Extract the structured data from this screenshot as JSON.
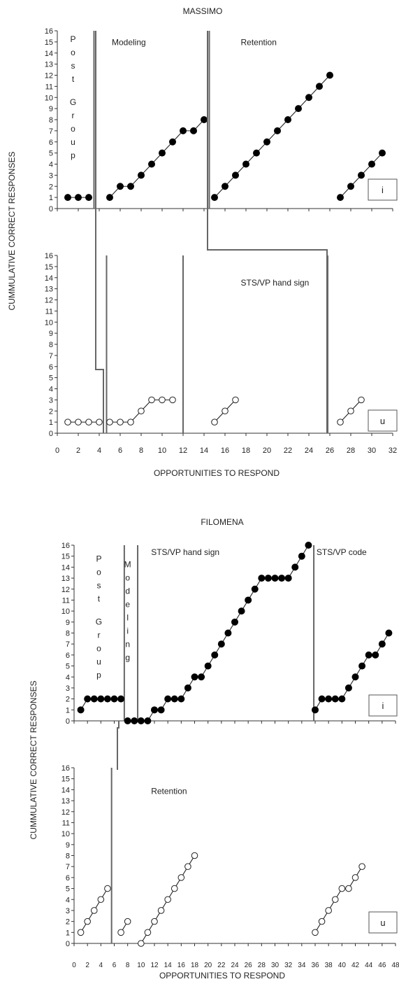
{
  "chart_data": [
    {
      "type": "line",
      "title": "MASSIMO",
      "ylabel": "CUMMULATIVE CORRECT RESPONSES",
      "xlabel": "OPPORTUNITIES TO RESPOND",
      "xlim": [
        0,
        32
      ],
      "ylim": [
        0,
        16
      ],
      "x_ticks": [
        0,
        2,
        4,
        6,
        8,
        10,
        12,
        14,
        16,
        18,
        20,
        22,
        24,
        26,
        28,
        30,
        32
      ],
      "y_ticks": [
        0,
        1,
        2,
        3,
        4,
        5,
        6,
        7,
        8,
        9,
        10,
        11,
        12,
        13,
        14,
        15,
        16
      ],
      "panels": [
        {
          "box_label": "i",
          "phase_labels": [
            {
              "text": "Post Group",
              "vertical": true,
              "x": 1.5,
              "y": 15
            },
            {
              "text": "Modeling",
              "vertical": false,
              "x": 5.2,
              "y": 14.7
            },
            {
              "text": "Retention",
              "vertical": false,
              "x": 17.5,
              "y": 14.7
            }
          ],
          "phase_lines": [
            3.5,
            14.5
          ],
          "series": [
            {
              "marker": "filled",
              "points": [
                [
                  1,
                  1
                ],
                [
                  2,
                  1
                ],
                [
                  3,
                  1
                ]
              ]
            },
            {
              "marker": "filled",
              "points": [
                [
                  5,
                  1
                ],
                [
                  6,
                  2
                ],
                [
                  7,
                  2
                ],
                [
                  8,
                  3
                ],
                [
                  9,
                  4
                ],
                [
                  10,
                  5
                ],
                [
                  11,
                  6
                ],
                [
                  12,
                  7
                ],
                [
                  13,
                  7
                ],
                [
                  14,
                  8
                ]
              ]
            },
            {
              "marker": "filled",
              "points": [
                [
                  15,
                  1
                ],
                [
                  16,
                  2
                ],
                [
                  17,
                  3
                ],
                [
                  18,
                  4
                ],
                [
                  19,
                  5
                ],
                [
                  20,
                  6
                ],
                [
                  21,
                  7
                ],
                [
                  22,
                  8
                ],
                [
                  23,
                  9
                ],
                [
                  24,
                  10
                ],
                [
                  25,
                  11
                ],
                [
                  26,
                  12
                ]
              ]
            },
            {
              "marker": "filled",
              "points": [
                [
                  27,
                  1
                ],
                [
                  28,
                  2
                ],
                [
                  29,
                  3
                ],
                [
                  30,
                  4
                ],
                [
                  31,
                  5
                ]
              ]
            }
          ]
        },
        {
          "box_label": "u",
          "phase_labels": [
            {
              "text": "STS/VP hand sign",
              "vertical": false,
              "x": 17.5,
              "y": 13.3
            }
          ],
          "phase_lines": [
            4.7,
            12,
            25.8
          ],
          "series": [
            {
              "marker": "open",
              "points": [
                [
                  1,
                  1
                ],
                [
                  2,
                  1
                ],
                [
                  3,
                  1
                ],
                [
                  4,
                  1
                ]
              ]
            },
            {
              "marker": "open",
              "points": [
                [
                  5,
                  1
                ],
                [
                  6,
                  1
                ],
                [
                  7,
                  1
                ],
                [
                  8,
                  2
                ],
                [
                  9,
                  3
                ],
                [
                  10,
                  3
                ],
                [
                  11,
                  3
                ]
              ]
            },
            {
              "marker": "open",
              "points": [
                [
                  15,
                  1
                ],
                [
                  16,
                  2
                ],
                [
                  17,
                  3
                ]
              ]
            },
            {
              "marker": "open",
              "points": [
                [
                  27,
                  1
                ],
                [
                  28,
                  2
                ],
                [
                  29,
                  3
                ]
              ]
            }
          ]
        }
      ]
    },
    {
      "type": "line",
      "title": "FILOMENA",
      "ylabel": "CUMMULATIVE CORRECT RESPONSES",
      "xlabel": "OPPORTUNITIES TO RESPOND",
      "xlim": [
        0,
        48
      ],
      "ylim": [
        0,
        16
      ],
      "x_ticks": [
        0,
        2,
        4,
        6,
        8,
        10,
        12,
        14,
        16,
        18,
        20,
        22,
        24,
        26,
        28,
        30,
        32,
        34,
        36,
        38,
        40,
        42,
        44,
        46,
        48
      ],
      "x_tick_labels": [
        "0",
        "2",
        "4",
        "6",
        "8",
        "10",
        "12",
        "14",
        "16",
        "18",
        "20",
        "22",
        "24",
        "26",
        "28",
        "30",
        "32",
        "34",
        "36",
        "38",
        "40",
        "42",
        "44",
        "46",
        "48"
      ],
      "y_ticks": [
        0,
        1,
        2,
        3,
        4,
        5,
        6,
        7,
        8,
        9,
        10,
        11,
        12,
        13,
        14,
        15,
        16
      ],
      "panels": [
        {
          "box_label": "i",
          "phase_labels": [
            {
              "text": "Post Group",
              "vertical": true,
              "x": 3.7,
              "y": 14.5
            },
            {
              "text": "Modeling",
              "vertical": true,
              "x": 8,
              "y": 14
            },
            {
              "text": "STS/VP hand sign",
              "vertical": false,
              "x": 11.5,
              "y": 15.1
            },
            {
              "text": "STS/VP code",
              "vertical": false,
              "x": 36.2,
              "y": 15.1
            }
          ],
          "phase_lines": [
            7.5,
            9.5,
            35.8
          ],
          "series": [
            {
              "marker": "filled",
              "points": [
                [
                  1,
                  1
                ],
                [
                  2,
                  2
                ],
                [
                  3,
                  2
                ],
                [
                  4,
                  2
                ],
                [
                  5,
                  2
                ],
                [
                  6,
                  2
                ],
                [
                  7,
                  2
                ]
              ]
            },
            {
              "marker": "filled",
              "points": [
                [
                  8,
                  0
                ],
                [
                  9,
                  0
                ],
                [
                  10,
                  0
                ],
                [
                  11,
                  0
                ],
                [
                  12,
                  1
                ],
                [
                  13,
                  1
                ],
                [
                  14,
                  2
                ],
                [
                  15,
                  2
                ],
                [
                  16,
                  2
                ],
                [
                  17,
                  3
                ],
                [
                  18,
                  4
                ],
                [
                  19,
                  4
                ],
                [
                  20,
                  5
                ],
                [
                  21,
                  6
                ],
                [
                  22,
                  7
                ],
                [
                  23,
                  8
                ],
                [
                  24,
                  9
                ],
                [
                  25,
                  10
                ],
                [
                  26,
                  11
                ],
                [
                  27,
                  12
                ],
                [
                  28,
                  13
                ],
                [
                  29,
                  13
                ],
                [
                  30,
                  13
                ],
                [
                  31,
                  13
                ],
                [
                  32,
                  13
                ],
                [
                  33,
                  14
                ],
                [
                  34,
                  15
                ],
                [
                  35,
                  16
                ]
              ]
            },
            {
              "marker": "filled",
              "points": [
                [
                  36,
                  1
                ],
                [
                  37,
                  2
                ],
                [
                  38,
                  2
                ],
                [
                  39,
                  2
                ],
                [
                  40,
                  2
                ],
                [
                  41,
                  3
                ],
                [
                  42,
                  4
                ],
                [
                  43,
                  5
                ],
                [
                  44,
                  6
                ],
                [
                  45,
                  6
                ],
                [
                  46,
                  7
                ],
                [
                  47,
                  8
                ]
              ]
            }
          ]
        },
        {
          "box_label": "u",
          "phase_labels": [
            {
              "text": "Retention",
              "vertical": false,
              "x": 11.5,
              "y": 13.6
            }
          ],
          "phase_lines": [
            5.6
          ],
          "series": [
            {
              "marker": "open",
              "points": [
                [
                  1,
                  1
                ],
                [
                  2,
                  2
                ],
                [
                  3,
                  3
                ],
                [
                  4,
                  4
                ],
                [
                  5,
                  5
                ]
              ]
            },
            {
              "marker": "open",
              "points": [
                [
                  7,
                  1
                ],
                [
                  8,
                  2
                ]
              ]
            },
            {
              "marker": "open",
              "points": [
                [
                  10,
                  0
                ],
                [
                  11,
                  1
                ],
                [
                  12,
                  2
                ],
                [
                  13,
                  3
                ],
                [
                  14,
                  4
                ],
                [
                  15,
                  5
                ],
                [
                  16,
                  6
                ],
                [
                  17,
                  7
                ],
                [
                  18,
                  8
                ]
              ]
            },
            {
              "marker": "open",
              "points": [
                [
                  36,
                  1
                ],
                [
                  37,
                  2
                ],
                [
                  38,
                  3
                ],
                [
                  39,
                  4
                ],
                [
                  40,
                  5
                ],
                [
                  41,
                  5
                ],
                [
                  42,
                  6
                ],
                [
                  43,
                  7
                ]
              ]
            }
          ]
        }
      ]
    }
  ]
}
